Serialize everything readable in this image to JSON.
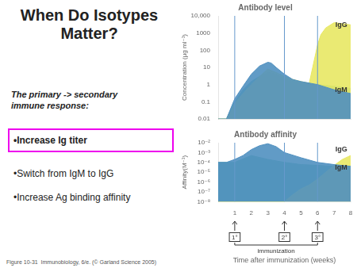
{
  "slide": {
    "title": "When Do Isotypes\nMatter?",
    "subtitle": "The primary -> secondary\nimmune response:",
    "bullets": [
      "•Increase Ig titer",
      "•Switch from IgM to IgG",
      "•Increase Ag binding affinity"
    ],
    "boxed_bullets": [
      0
    ],
    "box_color": "#ee00ee",
    "caption": "Figure 10-31  Immunobiology, 6/e. (© Garland Science 2005)"
  },
  "chart_data": [
    {
      "type": "area",
      "title": "Antibody level",
      "ylabel": "Concentration (μg ml⁻¹)",
      "log": "y",
      "grid": false,
      "tick_labels": "y",
      "xlim": [
        0,
        8
      ],
      "xticks": [
        1,
        2,
        3,
        4,
        5,
        6,
        7,
        8
      ],
      "ylim": [
        0.01,
        10000
      ],
      "yticks": [
        0.01,
        0.1,
        1,
        10,
        100,
        1000,
        {
          "value": 10000,
          "label": "10,000"
        }
      ],
      "series": [
        {
          "name": "IgM",
          "color": "#60b8a0",
          "x": [
            0,
            0.5,
            1,
            1.5,
            2,
            2.5,
            3,
            3.5,
            4,
            4.5,
            5,
            5.5,
            6,
            6.5,
            7,
            7.5,
            8
          ],
          "values": [
            0.01,
            0.01,
            0.1,
            0.5,
            1.5,
            3,
            5,
            4,
            2,
            1.5,
            1.2,
            1,
            1,
            0.9,
            0.8,
            0.7,
            0.6
          ]
        },
        {
          "name": "IgG",
          "color": "#e8e864",
          "x": [
            0,
            0.5,
            1,
            1.5,
            2,
            2.5,
            3,
            3.5,
            4,
            4.5,
            5,
            5.5,
            6,
            6.2,
            6.5,
            7,
            7.5,
            8
          ],
          "values": [
            0.01,
            0.01,
            0.08,
            0.3,
            1,
            3,
            8,
            5,
            3,
            2,
            1.5,
            1.2,
            200,
            800,
            2000,
            4000,
            3500,
            3000
          ]
        },
        {
          "name": "IgM",
          "color": "#5090c0",
          "x": [
            0,
            0.5,
            1,
            1.5,
            2,
            2.5,
            3,
            3.2,
            3.5,
            4,
            4.5,
            5,
            6,
            7,
            8
          ],
          "values": [
            0.01,
            0.01,
            0.15,
            0.8,
            4,
            12,
            20,
            18,
            10,
            4,
            2,
            1.5,
            1,
            0.5,
            0.3
          ]
        }
      ],
      "annotations": [
        {
          "type": "vline",
          "x": 1,
          "color": "#6699cc"
        },
        {
          "type": "vline",
          "x": 4,
          "color": "#6699cc"
        },
        {
          "type": "vline",
          "x": 6,
          "color": "#6699cc"
        },
        {
          "type": "text",
          "text": "IgG",
          "x": 7.8,
          "y": 3000
        },
        {
          "type": "text",
          "text": "IgM",
          "x": 7.8,
          "y": 0.5
        }
      ]
    },
    {
      "type": "area",
      "title": "Antibody affinity",
      "ylabel": "Affinity(M⁻¹)",
      "xlabel": "Time after immunization (weeks)",
      "log": "y",
      "grid": false,
      "xlim": [
        0,
        8
      ],
      "xticks": [
        1,
        2,
        3,
        4,
        5,
        6,
        7,
        8
      ],
      "ylim": [
        1e-08,
        0.01
      ],
      "yticks": [
        {
          "value": 1e-08,
          "label": "10⁻⁸"
        },
        {
          "value": 1e-07,
          "label": "10⁻⁷"
        },
        {
          "value": 1e-06,
          "label": "10⁻⁶"
        },
        {
          "value": 1e-05,
          "label": "10⁻⁵"
        },
        {
          "value": 0.0001,
          "label": "10⁻⁴"
        },
        {
          "value": 0.001,
          "label": "10⁻³"
        },
        {
          "value": 0.01,
          "label": "10⁻²"
        }
      ],
      "series": [
        {
          "name": "IgM",
          "color": "#60b8a0",
          "x": [
            0,
            1,
            2,
            3,
            4,
            5,
            6,
            7,
            8
          ],
          "values": [
            0.0001,
            0.0001,
            0.0005,
            0.0002,
            0.0001,
            6e-05,
            5e-05,
            4e-05,
            3e-05
          ]
        },
        {
          "name": "IgG",
          "color": "#e8e864",
          "x": [
            0,
            1,
            2,
            3,
            4,
            4.5,
            5,
            5.5,
            6,
            6.5,
            7,
            7.5,
            8
          ],
          "values": [
            1e-08,
            1e-08,
            1e-08,
            1e-08,
            1e-08,
            5e-08,
            2e-07,
            5e-07,
            2e-06,
            1e-05,
            5e-05,
            0.0002,
            0.0005
          ]
        },
        {
          "name": "IgM",
          "color": "#5090c0",
          "x": [
            0,
            0.5,
            1,
            1.5,
            2,
            2.5,
            3,
            3.5,
            4,
            5,
            6,
            7,
            8
          ],
          "values": [
            0.0001,
            0.0001,
            0.0002,
            0.0005,
            0.002,
            0.005,
            0.008,
            0.004,
            0.001,
            0.0003,
            0.0001,
            6e-05,
            4e-05
          ]
        }
      ],
      "annotations": [
        {
          "type": "vline",
          "x": 1,
          "color": "#6699cc"
        },
        {
          "type": "vline",
          "x": 4,
          "color": "#6699cc"
        },
        {
          "type": "vline",
          "x": 6,
          "color": "#6699cc"
        },
        {
          "type": "text",
          "text": "IgG",
          "x": 7.8,
          "y": 0.002
        },
        {
          "type": "text",
          "text": "IgM",
          "x": 7.8,
          "y": 3e-05
        },
        {
          "type": "arrow",
          "x": 1,
          "label": "1°"
        },
        {
          "type": "arrow",
          "x": 4,
          "label": "2°"
        },
        {
          "type": "arrow",
          "x": 6,
          "label": "3°"
        }
      ],
      "immunization_label": "immunization"
    }
  ]
}
